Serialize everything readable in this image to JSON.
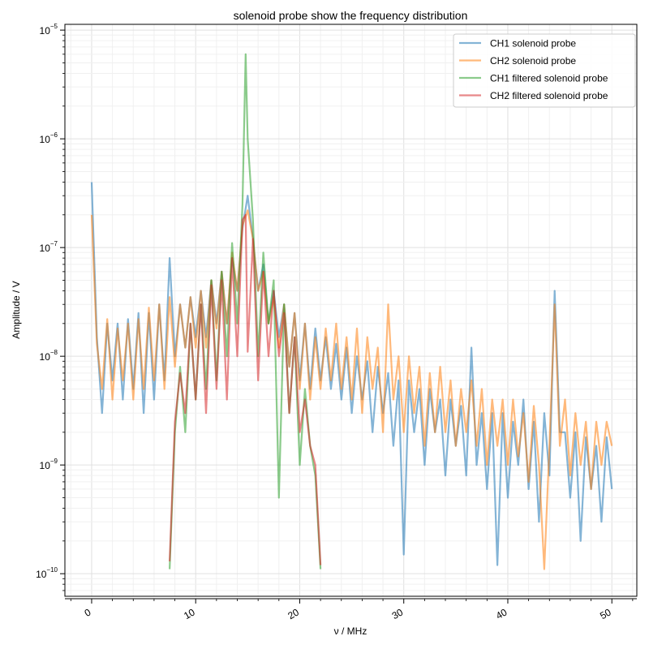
{
  "chart_data": {
    "type": "line",
    "title": "solenoid probe show the frequency distribution",
    "xlabel": "ν / MHz",
    "ylabel": "Amplitude / V",
    "xlim": [
      -2.57,
      52.4
    ],
    "ylim": [
      6.2e-11,
      1.13e-05
    ],
    "yscale": "log",
    "grid": "major and minor, both axes",
    "legend_position": "top-right",
    "xticks": [
      0,
      10,
      20,
      30,
      40,
      50
    ],
    "xtick_labels": [
      "0",
      "10",
      "20",
      "30",
      "40",
      "50"
    ],
    "yticks": [
      1e-10,
      1e-09,
      1e-08,
      1e-07,
      1e-06,
      1e-05
    ],
    "ytick_labels": [
      {
        "base": "10",
        "exp": "−10"
      },
      {
        "base": "10",
        "exp": "−9"
      },
      {
        "base": "10",
        "exp": "−8"
      },
      {
        "base": "10",
        "exp": "−7"
      },
      {
        "base": "10",
        "exp": "−6"
      },
      {
        "base": "10",
        "exp": "−5"
      }
    ],
    "series": [
      {
        "name": "CH1 solenoid probe",
        "color": "#1f77b4",
        "x": [
          0,
          0.5,
          1,
          1.5,
          2,
          2.5,
          3,
          3.5,
          4,
          4.5,
          5,
          5.5,
          6,
          6.5,
          7,
          7.5,
          8,
          8.5,
          9,
          9.5,
          10,
          10.5,
          11,
          11.5,
          12,
          12.5,
          13,
          13.5,
          14,
          14.5,
          15,
          15.5,
          16,
          16.5,
          17,
          17.5,
          18,
          18.5,
          19,
          19.5,
          20,
          20.5,
          21,
          21.5,
          22,
          22.5,
          23,
          23.5,
          24,
          24.5,
          25,
          25.5,
          26,
          26.5,
          27,
          27.5,
          28,
          28.5,
          29,
          29.5,
          30,
          30.5,
          31,
          31.5,
          32,
          32.5,
          33,
          33.5,
          34,
          34.5,
          35,
          35.5,
          36,
          36.5,
          37,
          37.5,
          38,
          38.5,
          39,
          39.5,
          40,
          40.5,
          41,
          41.5,
          42,
          42.5,
          43,
          43.5,
          44,
          44.5,
          45,
          45.5,
          46,
          46.5,
          47,
          47.5,
          48,
          48.5,
          49,
          49.5,
          50
        ],
        "y": [
          4e-07,
          1.5e-08,
          3e-09,
          2e-08,
          6e-09,
          2e-08,
          4e-09,
          2.2e-08,
          5e-09,
          2.5e-08,
          3e-09,
          2.5e-08,
          4e-09,
          3e-08,
          6e-09,
          8e-08,
          1e-08,
          3e-08,
          1.2e-08,
          3.5e-08,
          1.5e-08,
          4e-08,
          1.5e-08,
          5e-08,
          2e-08,
          6e-08,
          2e-08,
          8e-08,
          4e-08,
          1.5e-07,
          3e-07,
          1.2e-07,
          4e-08,
          7e-08,
          2e-08,
          4e-08,
          1.5e-08,
          3e-08,
          8e-09,
          2.5e-08,
          6e-09,
          2e-08,
          5e-09,
          1.8e-08,
          6e-09,
          1.5e-08,
          5e-09,
          1.3e-08,
          4e-09,
          1.2e-08,
          3e-09,
          1e-08,
          4e-09,
          9e-09,
          2e-09,
          8e-09,
          3e-09,
          7e-09,
          1.5e-09,
          6e-09,
          1.5e-10,
          6e-09,
          2e-09,
          5e-09,
          1e-09,
          5e-09,
          2e-09,
          4e-09,
          8e-10,
          4e-09,
          1.5e-09,
          3.5e-09,
          8e-10,
          1.2e-08,
          1e-09,
          3e-09,
          6e-10,
          3e-09,
          1.2e-10,
          3e-09,
          5e-10,
          2.5e-09,
          1e-09,
          4e-09,
          6e-10,
          2.5e-09,
          3e-10,
          3e-09,
          8e-10,
          4e-08,
          2e-09,
          2e-09,
          5e-10,
          2e-09,
          2e-10,
          1.8e-09,
          6e-10,
          1.5e-09,
          3e-10,
          1.8e-09,
          6e-10
        ]
      },
      {
        "name": "CH2 solenoid probe",
        "color": "#ff7f0e",
        "x": [
          0,
          0.5,
          1,
          1.5,
          2,
          2.5,
          3,
          3.5,
          4,
          4.5,
          5,
          5.5,
          6,
          6.5,
          7,
          7.5,
          8,
          8.5,
          9,
          9.5,
          10,
          10.5,
          11,
          11.5,
          12,
          12.5,
          13,
          13.5,
          14,
          14.5,
          15,
          15.5,
          16,
          16.5,
          17,
          17.5,
          18,
          18.5,
          19,
          19.5,
          20,
          20.5,
          21,
          21.5,
          22,
          22.5,
          23,
          23.5,
          24,
          24.5,
          25,
          25.5,
          26,
          26.5,
          27,
          27.5,
          28,
          28.5,
          29,
          29.5,
          30,
          30.5,
          31,
          31.5,
          32,
          32.5,
          33,
          33.5,
          34,
          34.5,
          35,
          35.5,
          36,
          36.5,
          37,
          37.5,
          38,
          38.5,
          39,
          39.5,
          40,
          40.5,
          41,
          41.5,
          42,
          42.5,
          43,
          43.5,
          44,
          44.5,
          45,
          45.5,
          46,
          46.5,
          47,
          47.5,
          48,
          48.5,
          49,
          49.5,
          50
        ],
        "y": [
          2e-07,
          1.3e-08,
          5e-09,
          2.2e-08,
          4e-09,
          1.8e-08,
          6e-09,
          2e-08,
          4e-09,
          2.2e-08,
          5e-09,
          2.8e-08,
          6e-09,
          3e-08,
          5e-09,
          3.5e-08,
          8e-09,
          3e-08,
          1.2e-08,
          3.5e-08,
          1.2e-08,
          4e-08,
          1.2e-08,
          5e-08,
          1.8e-08,
          6e-08,
          2e-08,
          9e-08,
          4e-08,
          1.6e-07,
          2.2e-07,
          1.2e-07,
          4e-08,
          6e-08,
          2e-08,
          3.5e-08,
          1.2e-08,
          3e-08,
          8e-09,
          2.5e-08,
          5e-09,
          2e-08,
          4e-09,
          1.5e-08,
          5e-09,
          1.8e-08,
          6e-09,
          2e-08,
          5e-09,
          1.5e-08,
          4e-09,
          1.8e-08,
          3e-09,
          1.5e-08,
          5e-09,
          1.2e-08,
          2e-09,
          3e-08,
          4e-09,
          1e-08,
          2e-09,
          1e-08,
          3e-09,
          8e-09,
          1.5e-09,
          7e-09,
          2e-09,
          8e-09,
          2e-09,
          6e-09,
          1.5e-09,
          5e-09,
          2e-09,
          6e-09,
          1.5e-09,
          5e-09,
          1e-09,
          4e-09,
          1.5e-09,
          4e-09,
          1e-09,
          4e-09,
          1.2e-09,
          3e-09,
          7e-10,
          3.5e-09,
          1e-09,
          1.1e-10,
          1.5e-09,
          3e-08,
          1.5e-09,
          4e-09,
          8e-10,
          3e-09,
          1e-09,
          2.5e-09,
          6e-10,
          2.5e-09,
          1e-09,
          2.5e-09,
          1.5e-09
        ]
      },
      {
        "name": "CH1 filtered solenoid probe",
        "color": "#2ca02c",
        "x": [
          7.5,
          8,
          8.5,
          9,
          9.5,
          10,
          10.5,
          11,
          11.5,
          12,
          12.5,
          13,
          13.5,
          14,
          14.5,
          14.8,
          15,
          15.5,
          16,
          16.5,
          17,
          17.5,
          18,
          18.5,
          19,
          19.5,
          20,
          20.5,
          21,
          21.5,
          22
        ],
        "y": [
          1.1e-10,
          2e-09,
          8e-09,
          2e-09,
          2e-08,
          4e-09,
          3e-08,
          5e-09,
          5e-08,
          6e-09,
          6e-08,
          1e-08,
          1.1e-07,
          2e-08,
          2.5e-07,
          6e-06,
          1e-06,
          1.8e-07,
          1e-08,
          9e-08,
          2e-08,
          5e-08,
          5e-10,
          3e-08,
          3e-09,
          1.5e-08,
          1e-09,
          5e-09,
          1.5e-09,
          8e-10,
          1.1e-10
        ]
      },
      {
        "name": "CH2 filtered solenoid probe",
        "color": "#d62728",
        "x": [
          7.5,
          8,
          8.5,
          9,
          9.5,
          10,
          10.5,
          11,
          11.5,
          12,
          12.5,
          13,
          13.5,
          14,
          14.5,
          14.8,
          15,
          15.5,
          16,
          16.5,
          17,
          17.5,
          18,
          18.5,
          19,
          19.5,
          20,
          20.5,
          21,
          21.5,
          22
        ],
        "y": [
          1.3e-10,
          2.5e-09,
          7e-09,
          3e-09,
          2e-08,
          4e-09,
          3e-08,
          3e-09,
          4.5e-08,
          5e-09,
          5e-08,
          4e-09,
          8e-08,
          1e-08,
          1.8e-07,
          2e-07,
          1.1e-08,
          1.2e-07,
          6e-09,
          6e-08,
          1e-08,
          4e-08,
          1e-08,
          2.5e-08,
          3e-09,
          1.5e-08,
          2e-09,
          4e-09,
          1.5e-09,
          1e-09,
          1.2e-10
        ]
      }
    ]
  }
}
